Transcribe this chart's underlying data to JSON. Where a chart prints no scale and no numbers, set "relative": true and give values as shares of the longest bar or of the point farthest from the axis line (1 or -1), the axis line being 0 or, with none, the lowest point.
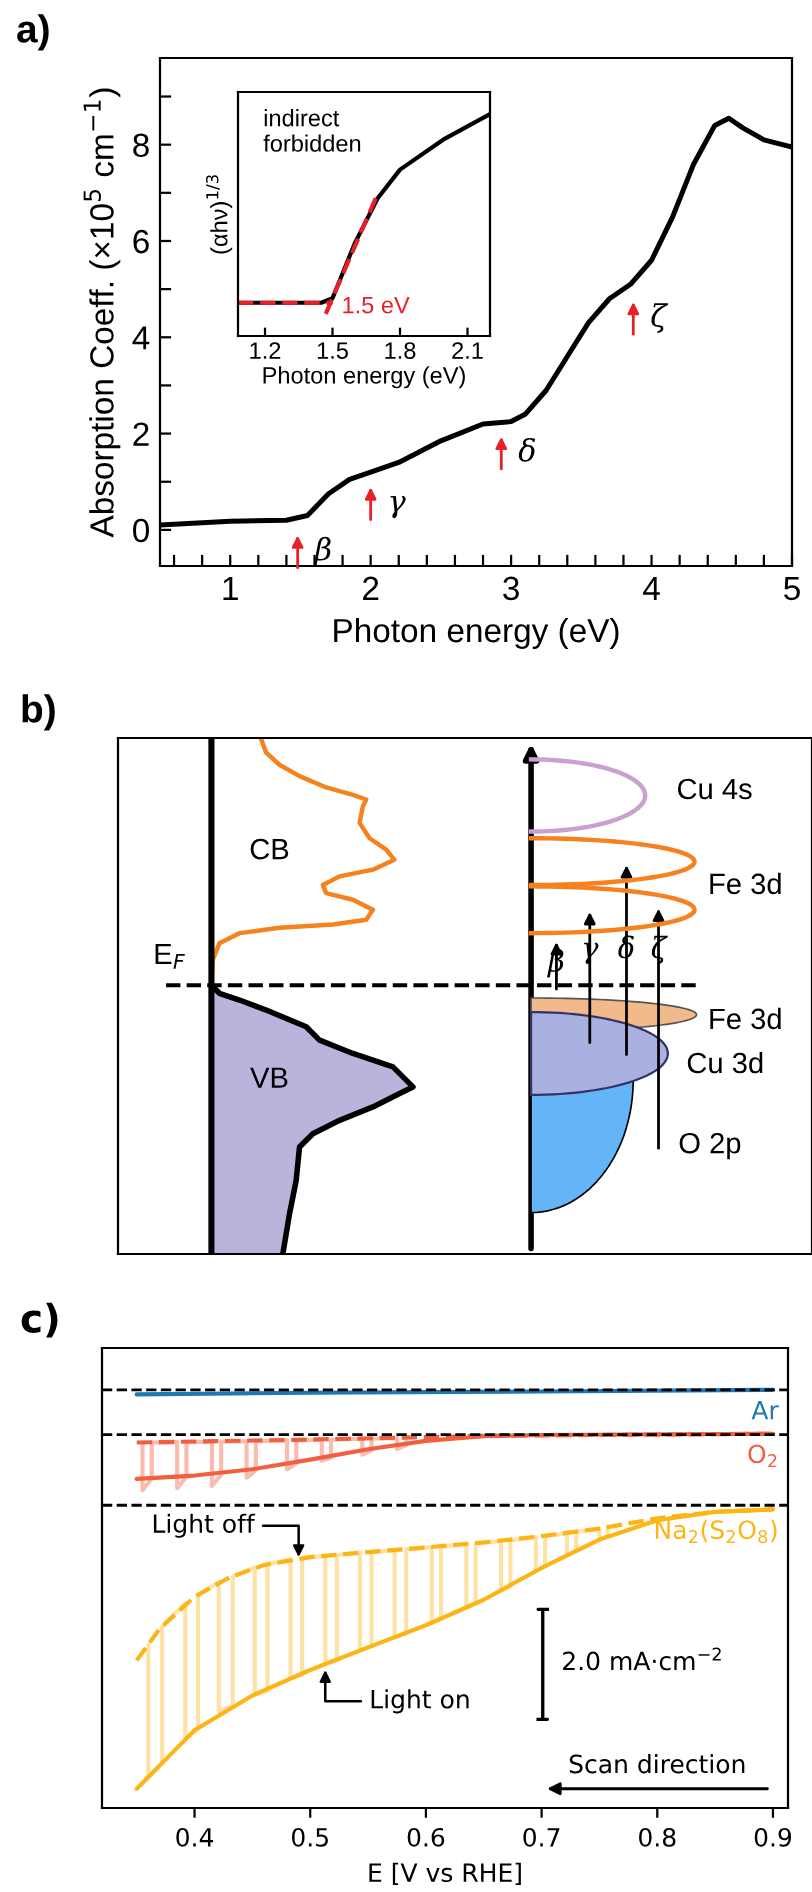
{
  "chart_data": [
    {
      "type": "line",
      "title": "a)",
      "xlabel": "Photon energy (eV)",
      "ylabel": "Absorption Coeff. (×10$^{5}$ cm$^{−1}$)",
      "xlim": [
        0.5,
        5.0
      ],
      "ylim": [
        -0.75,
        9.8
      ],
      "xticks": [
        {
          "value": 0.6,
          "label": null
        },
        {
          "value": 0.8,
          "label": null
        },
        1,
        {
          "value": 1.2,
          "label": null
        },
        {
          "value": 1.4,
          "label": null
        },
        {
          "value": 1.6,
          "label": null
        },
        {
          "value": 1.8,
          "label": null
        },
        2,
        {
          "value": 2.2,
          "label": null
        },
        {
          "value": 2.4,
          "label": null
        },
        {
          "value": 2.6,
          "label": null
        },
        {
          "value": 2.8,
          "label": null
        },
        3,
        {
          "value": 3.2,
          "label": null
        },
        {
          "value": 3.4,
          "label": null
        },
        {
          "value": 3.6,
          "label": null
        },
        {
          "value": 3.8,
          "label": null
        },
        4,
        {
          "value": 4.2,
          "label": null
        },
        {
          "value": 4.4,
          "label": null
        },
        {
          "value": 4.6,
          "label": null
        },
        {
          "value": 4.8,
          "label": null
        },
        5
      ],
      "yticks": [
        0,
        {
          "value": 1,
          "label": null
        },
        2,
        {
          "value": 3,
          "label": null
        },
        4,
        {
          "value": 5,
          "label": null
        },
        6,
        {
          "value": 7,
          "label": null
        },
        8,
        {
          "value": 9,
          "label": null
        }
      ],
      "series": [
        {
          "color": "#000000",
          "x": [
            0.5,
            1.0,
            1.4,
            1.55,
            1.7,
            1.85,
            2.0,
            2.2,
            2.5,
            2.8,
            3.0,
            3.1,
            3.25,
            3.4,
            3.55,
            3.7,
            3.85,
            4.0,
            4.15,
            4.3,
            4.45,
            4.55,
            4.65,
            4.8,
            5.0
          ],
          "values": [
            0.1,
            0.18,
            0.2,
            0.3,
            0.75,
            1.05,
            1.2,
            1.4,
            1.85,
            2.2,
            2.25,
            2.4,
            2.9,
            3.6,
            4.3,
            4.8,
            5.1,
            5.6,
            6.5,
            7.6,
            8.4,
            8.55,
            8.35,
            8.1,
            7.95
          ]
        }
      ],
      "annotations": [
        {
          "text": "β",
          "x": 1.48,
          "y": 0.0
        },
        {
          "text": "γ",
          "x": 2.0,
          "y": 1.0
        },
        {
          "text": "δ",
          "x": 2.93,
          "y": 2.05
        },
        {
          "text": "ζ",
          "x": 3.87,
          "y": 4.85
        }
      ]
    },
    {
      "type": "line",
      "relative": true,
      "xlabel": "Photon energy (eV)",
      "ylabel": "(αhν)$^{1/3}$",
      "xlim": [
        1.08,
        2.2
      ],
      "xticks": [
        1.2,
        1.5,
        1.8,
        2.1
      ],
      "series": [
        {
          "color": "#000000",
          "x": [
            1.08,
            1.45,
            1.5,
            1.6,
            1.7,
            1.8,
            2.0,
            2.2
          ],
          "values": [
            0.15,
            0.15,
            0.17,
            0.42,
            0.62,
            0.75,
            0.89,
            1.0
          ]
        },
        {
          "color": "#e8202a",
          "line_style": "dashed",
          "x": [
            1.08,
            1.5
          ],
          "values": [
            0.15,
            0.15
          ]
        },
        {
          "color": "#e8202a",
          "line_style": "dashed",
          "x": [
            1.47,
            1.7
          ],
          "values": [
            0.1,
            0.64
          ]
        }
      ],
      "annotations": [
        "indirect\nforbidden",
        {
          "text": "1.5 eV",
          "x": 1.5,
          "y": 0.15
        }
      ]
    },
    {
      "type": "other",
      "title": "b)",
      "annotations": [
        "CB",
        "VB",
        "E$_{F}$",
        "Cu 4s",
        "Fe 3d",
        "Fe 3d",
        "Cu 3d",
        "O 2p",
        "β",
        "γ",
        "δ",
        "ζ"
      ]
    },
    {
      "type": "line",
      "title": "c)",
      "relative": true,
      "xlabel": "E [V vs RHE]",
      "xlim": [
        0.32,
        0.913
      ],
      "xticks": [
        0.4,
        0.5,
        0.6,
        0.7,
        0.8,
        0.9
      ],
      "tick_labels": "x",
      "ref_lines": [
        {
          "axis": "y",
          "value": 1.0,
          "color": "#000000",
          "line_style": "dashed"
        },
        {
          "axis": "y",
          "value": 0.893,
          "color": "#000000",
          "line_style": "dashed"
        },
        {
          "axis": "y",
          "value": 0.724,
          "color": "#000000",
          "line_style": "dashed"
        }
      ],
      "series": [
        {
          "color": "#fde2a6",
          "x": [
            0.36,
            0.36,
            0.372,
            0.372,
            0.392,
            0.392,
            0.403,
            0.403,
            0.421,
            0.421,
            0.433,
            0.433,
            0.452,
            0.452,
            0.463,
            0.463,
            0.483,
            0.483,
            0.493,
            0.493,
            0.513,
            0.513,
            0.523,
            0.523,
            0.543,
            0.543,
            0.553,
            0.553,
            0.573,
            0.573,
            0.583,
            0.583,
            0.605,
            0.605,
            0.613,
            0.613,
            0.635,
            0.635,
            0.643,
            0.643,
            0.665,
            0.665,
            0.673,
            0.673,
            0.695,
            0.695,
            0.703,
            0.703,
            0.722,
            0.722,
            0.73,
            0.73,
            0.75,
            0.75,
            0.757,
            0.757
          ],
          "values": [
            0.39,
            0.074,
            0.108,
            0.434,
            0.49,
            0.165,
            0.19,
            0.51,
            0.54,
            0.23,
            0.245,
            0.553,
            0.575,
            0.27,
            0.28,
            0.583,
            0.595,
            0.31,
            0.32,
            0.598,
            0.603,
            0.345,
            0.355,
            0.605,
            0.611,
            0.377,
            0.387,
            0.612,
            0.617,
            0.408,
            0.418,
            0.619,
            0.624,
            0.443,
            0.453,
            0.625,
            0.632,
            0.48,
            0.49,
            0.633,
            0.638,
            0.52,
            0.53,
            0.64,
            0.648,
            0.567,
            0.578,
            0.65,
            0.657,
            0.605,
            0.615,
            0.66,
            0.668,
            0.642,
            0.65,
            0.67
          ]
        },
        {
          "color": "#f9bcae",
          "x": [
            0.355,
            0.355,
            0.363,
            0.363,
            0.385,
            0.385,
            0.393,
            0.393,
            0.415,
            0.415,
            0.423,
            0.423,
            0.445,
            0.445,
            0.453,
            0.453,
            0.48,
            0.48,
            0.488,
            0.488,
            0.51,
            0.51,
            0.518,
            0.518,
            0.545,
            0.545,
            0.553,
            0.553,
            0.575,
            0.575,
            0.583,
            0.583
          ],
          "values": [
            0.874,
            0.76,
            0.788,
            0.874,
            0.875,
            0.765,
            0.792,
            0.875,
            0.876,
            0.77,
            0.797,
            0.876,
            0.877,
            0.79,
            0.808,
            0.877,
            0.879,
            0.81,
            0.824,
            0.879,
            0.881,
            0.83,
            0.838,
            0.881,
            0.883,
            0.845,
            0.855,
            0.883,
            0.885,
            0.858,
            0.868,
            0.885
          ]
        },
        {
          "name": "Ar",
          "color": "#1f77b4",
          "x": [
            0.35,
            0.5,
            0.7,
            0.9
          ],
          "values": [
            0.989,
            0.993,
            0.996,
            1.0
          ]
        },
        {
          "color": "#f06040",
          "line_style": "dashed",
          "x": [
            0.35,
            0.5,
            0.65,
            0.9
          ],
          "values": [
            0.874,
            0.881,
            0.89,
            0.895
          ]
        },
        {
          "name": "O$_{2}$",
          "color": "#f06040",
          "x": [
            0.35,
            0.4,
            0.45,
            0.5,
            0.55,
            0.6,
            0.65,
            0.7,
            0.9
          ],
          "values": [
            0.787,
            0.795,
            0.81,
            0.833,
            0.858,
            0.878,
            0.889,
            0.892,
            0.895
          ]
        },
        {
          "color": "#fdb415",
          "line_style": "dashed",
          "x": [
            0.35,
            0.37,
            0.4,
            0.43,
            0.46,
            0.5,
            0.55,
            0.6,
            0.65,
            0.7,
            0.75,
            0.8,
            0.85,
            0.9
          ],
          "values": [
            0.353,
            0.429,
            0.505,
            0.551,
            0.581,
            0.6,
            0.612,
            0.623,
            0.635,
            0.65,
            0.668,
            0.693,
            0.708,
            0.714
          ]
        },
        {
          "name": "Na$_{2}$(S$_{2}$O$_{8}$)",
          "color": "#fdb415",
          "x": [
            0.35,
            0.37,
            0.4,
            0.45,
            0.5,
            0.55,
            0.6,
            0.65,
            0.7,
            0.75,
            0.8,
            0.85,
            0.9
          ],
          "values": [
            0.046,
            0.102,
            0.186,
            0.269,
            0.33,
            0.384,
            0.437,
            0.498,
            0.574,
            0.642,
            0.688,
            0.708,
            0.714
          ]
        }
      ],
      "annotations": [
        {
          "text": "Light off",
          "x": 0.49,
          "y": 0.6
        },
        {
          "text": "Light on",
          "x": 0.513,
          "y": 0.33
        },
        "2.0 mA·cm$^{−2}$",
        "Scan direction"
      ]
    }
  ]
}
